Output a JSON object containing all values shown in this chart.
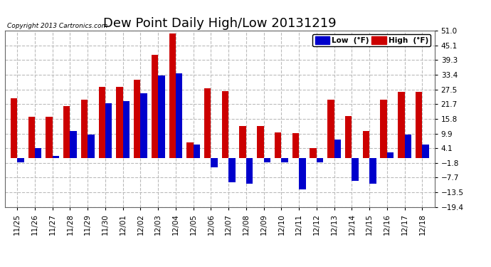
{
  "title": "Dew Point Daily High/Low 20131219",
  "copyright": "Copyright 2013 Cartronics.com",
  "legend_low": "Low  (°F)",
  "legend_high": "High  (°F)",
  "dates": [
    "11/25",
    "11/26",
    "11/27",
    "11/28",
    "11/29",
    "11/30",
    "12/01",
    "12/02",
    "12/03",
    "12/04",
    "12/05",
    "12/06",
    "12/07",
    "12/08",
    "12/09",
    "12/10",
    "12/11",
    "12/12",
    "12/13",
    "12/14",
    "12/15",
    "12/16",
    "12/17",
    "12/18"
  ],
  "high": [
    24.0,
    16.5,
    16.5,
    21.0,
    23.5,
    28.5,
    28.5,
    31.5,
    41.5,
    50.0,
    6.5,
    28.0,
    27.0,
    13.0,
    13.0,
    10.5,
    10.0,
    4.0,
    23.5,
    17.0,
    11.0,
    23.5,
    26.5,
    26.5
  ],
  "low": [
    -1.5,
    4.0,
    1.0,
    11.0,
    9.5,
    22.0,
    23.0,
    26.0,
    33.0,
    34.0,
    5.5,
    -3.5,
    -9.5,
    -10.0,
    -1.5,
    -1.5,
    -12.5,
    -1.5,
    7.5,
    -9.0,
    -10.0,
    2.5,
    9.5,
    5.5
  ],
  "ylim": [
    -19.4,
    51.0
  ],
  "yticks": [
    -19.4,
    -13.5,
    -7.7,
    -1.8,
    4.1,
    9.9,
    15.8,
    21.7,
    27.5,
    33.4,
    39.3,
    45.1,
    51.0
  ],
  "bar_width": 0.38,
  "high_color": "#cc0000",
  "low_color": "#0000cc",
  "bg_color": "#ffffff",
  "grid_color": "#bbbbbb",
  "title_fontsize": 13,
  "tick_fontsize": 7.5
}
